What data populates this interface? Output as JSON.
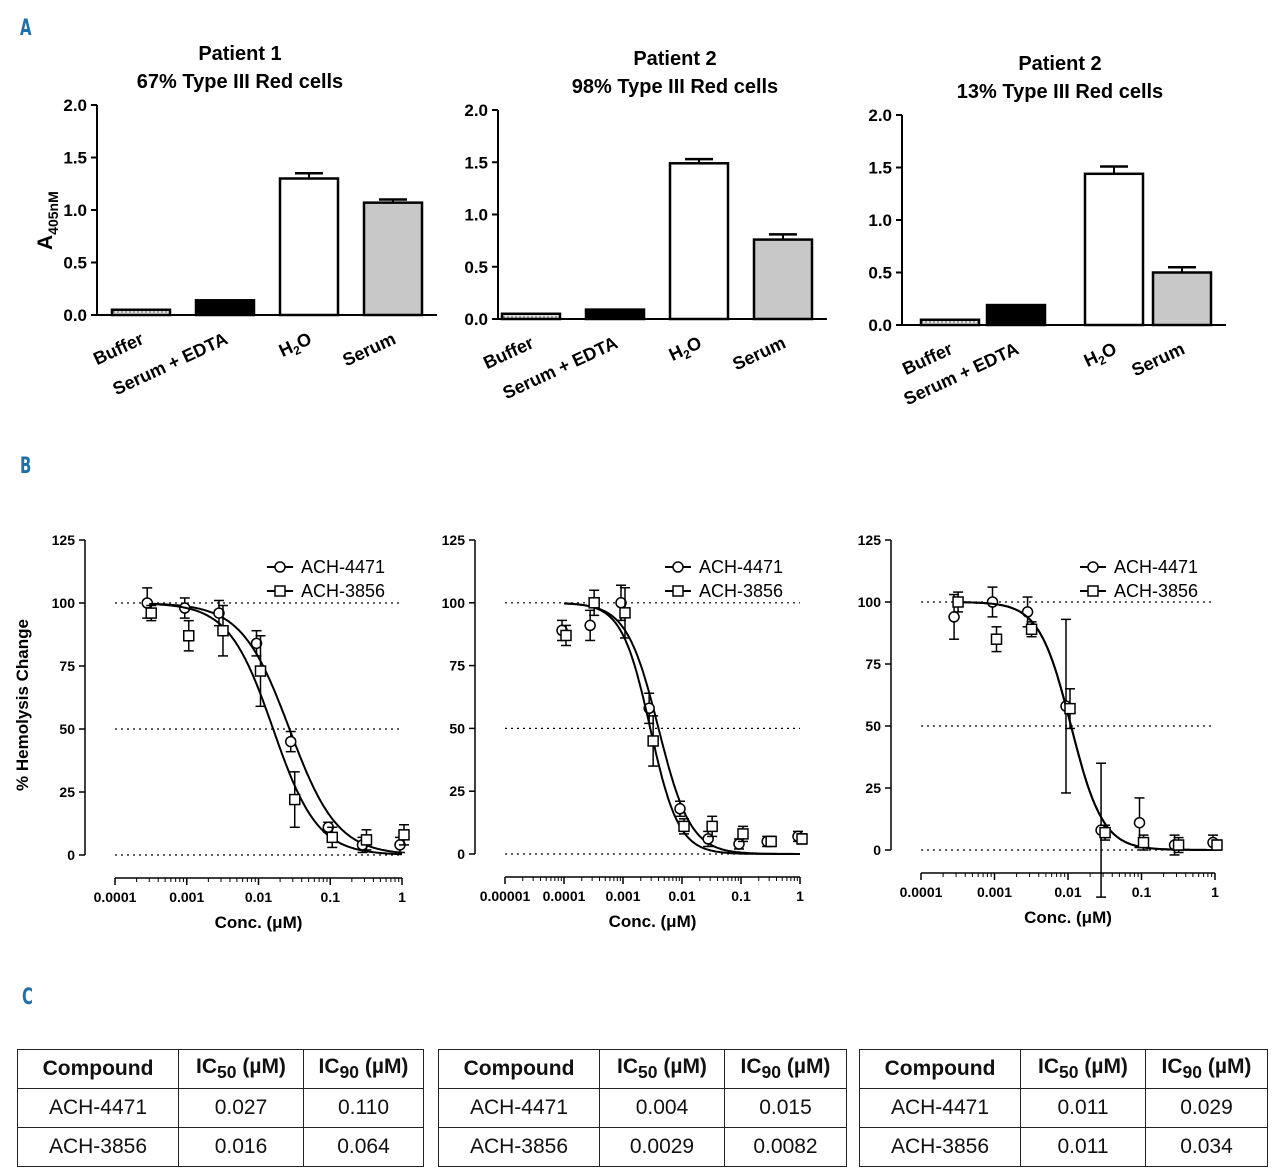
{
  "panels": {
    "a": "A",
    "b": "B",
    "c": "C"
  },
  "bar_charts": [
    {
      "title1": "Patient 1",
      "title2": "67% Type III Red cells"
    },
    {
      "title1": "Patient 2",
      "title2": "98% Type III Red cells"
    },
    {
      "title1": "Patient 2",
      "title2": "13% Type III Red cells"
    }
  ],
  "curve_charts": [
    {
      "xlabel": "Conc. (μM)"
    },
    {
      "xlabel": "Conc. (μM)"
    },
    {
      "xlabel": "Conc. (μM)"
    }
  ],
  "legend": {
    "s1": "ACH-4471",
    "s2": "ACH-3856"
  },
  "tables": [
    {
      "h1": "Compound",
      "h2": "IC",
      "h2sub": "50",
      "h2unit": " (µM)",
      "h3": "IC",
      "h3sub": "90",
      "h3unit": " (µM)",
      "rows": [
        [
          "ACH-4471",
          "0.027",
          "0.110"
        ],
        [
          "ACH-3856",
          "0.016",
          "0.064"
        ]
      ]
    },
    {
      "h1": "Compound",
      "h2": "IC",
      "h2sub": "50",
      "h2unit": " (µM)",
      "h3": "IC",
      "h3sub": "90",
      "h3unit": " (µM)",
      "rows": [
        [
          "ACH-4471",
          "0.004",
          "0.015"
        ],
        [
          "ACH-3856",
          "0.0029",
          "0.0082"
        ]
      ]
    },
    {
      "h1": "Compound",
      "h2": "IC",
      "h2sub": "50",
      "h2unit": " (µM)",
      "h3": "IC",
      "h3sub": "90",
      "h3unit": " (µM)",
      "rows": [
        [
          "ACH-4471",
          "0.011",
          "0.029"
        ],
        [
          "ACH-3856",
          "0.011",
          "0.034"
        ]
      ]
    }
  ],
  "chart_data": [
    {
      "type": "bar",
      "title": "Patient 1 67% Type III Red cells",
      "ylabel": "A405nM",
      "ylabel_main": "A",
      "ylabel_sub": "405nM",
      "categories": [
        "Buffer",
        "Serum + EDTA",
        "H2O",
        "Serum"
      ],
      "values": [
        0.05,
        0.14,
        1.3,
        1.07
      ],
      "errors": [
        0.01,
        0.01,
        0.05,
        0.03
      ],
      "fills": [
        "#d0d0d0",
        "#000000",
        "#ffffff",
        "#c8c8c8"
      ],
      "ylim": [
        0,
        2.0
      ],
      "yticks": [
        "0.0",
        "0.5",
        "1.0",
        "1.5",
        "2.0"
      ]
    },
    {
      "type": "bar",
      "title": "Patient 2 98% Type III Red cells",
      "ylabel": "",
      "categories": [
        "Buffer",
        "Serum + EDTA",
        "H2O",
        "Serum"
      ],
      "values": [
        0.05,
        0.09,
        1.49,
        0.76
      ],
      "errors": [
        0.01,
        0.01,
        0.04,
        0.05
      ],
      "fills": [
        "#d0d0d0",
        "#000000",
        "#ffffff",
        "#c8c8c8"
      ],
      "ylim": [
        0,
        2.0
      ],
      "yticks": [
        "0.0",
        "0.5",
        "1.0",
        "1.5",
        "2.0"
      ]
    },
    {
      "type": "bar",
      "title": "Patient 2 13% Type III Red cells",
      "ylabel": "",
      "categories": [
        "Buffer",
        "Serum + EDTA",
        "H2O",
        "Serum"
      ],
      "values": [
        0.05,
        0.19,
        1.44,
        0.5
      ],
      "errors": [
        0.01,
        0.01,
        0.07,
        0.05
      ],
      "fills": [
        "#d0d0d0",
        "#000000",
        "#ffffff",
        "#c8c8c8"
      ],
      "ylim": [
        0,
        2.0
      ],
      "yticks": [
        "0.0",
        "0.5",
        "1.0",
        "1.5",
        "2.0"
      ]
    },
    {
      "type": "scatter",
      "xscale": "log",
      "xlabel": "Conc. (μM)",
      "ylabel": "% Hemolysis Change",
      "xlim": [
        0.0001,
        1
      ],
      "xticks": [
        "0.0001",
        "0.001",
        "0.01",
        "0.1",
        "1"
      ],
      "ylim": [
        0,
        125
      ],
      "yticks": [
        "0",
        "25",
        "50",
        "75",
        "100",
        "125"
      ],
      "hlines": [
        0,
        50,
        100
      ],
      "series": [
        {
          "name": "ACH-4471",
          "marker": "circle",
          "ic50": 0.027,
          "hill": 1.3,
          "x": [
            0.0003,
            0.001,
            0.003,
            0.01,
            0.03,
            0.1,
            0.3,
            1
          ],
          "y": [
            100,
            98,
            96,
            84,
            45,
            11,
            4,
            4
          ],
          "err": [
            6,
            4,
            5,
            5,
            4,
            2,
            3,
            3
          ]
        },
        {
          "name": "ACH-3856",
          "marker": "square",
          "ic50": 0.016,
          "hill": 1.4,
          "x": [
            0.0003,
            0.001,
            0.003,
            0.01,
            0.03,
            0.1,
            0.3,
            1
          ],
          "y": [
            96,
            87,
            89,
            73,
            22,
            7,
            6,
            8
          ],
          "err": [
            3,
            6,
            10,
            14,
            11,
            4,
            4,
            4
          ]
        }
      ]
    },
    {
      "type": "scatter",
      "xscale": "log",
      "xlabel": "Conc. (μM)",
      "ylabel": "",
      "xlim": [
        1e-05,
        1
      ],
      "xticks": [
        "0.00001",
        "0.0001",
        "0.001",
        "0.01",
        "0.1",
        "1"
      ],
      "ylim": [
        0,
        125
      ],
      "yticks": [
        "0",
        "25",
        "50",
        "75",
        "100",
        "125"
      ],
      "hlines": [
        0,
        50,
        100
      ],
      "series": [
        {
          "name": "ACH-4471",
          "marker": "circle",
          "ic50": 0.004,
          "hill": 1.6,
          "x": [
            0.0001,
            0.0003,
            0.001,
            0.003,
            0.01,
            0.03,
            0.1,
            0.3,
            1
          ],
          "y": [
            89,
            91,
            100,
            58,
            18,
            6,
            4,
            5,
            7
          ],
          "err": [
            4,
            6,
            7,
            6,
            3,
            3,
            2,
            2,
            2
          ]
        },
        {
          "name": "ACH-3856",
          "marker": "square",
          "ic50": 0.0029,
          "hill": 1.8,
          "x": [
            0.0001,
            0.0003,
            0.001,
            0.003,
            0.01,
            0.03,
            0.1,
            0.3,
            1
          ],
          "y": [
            87,
            100,
            96,
            45,
            11,
            11,
            8,
            5,
            6
          ],
          "err": [
            4,
            5,
            10,
            10,
            3,
            4,
            3,
            2,
            2
          ]
        }
      ]
    },
    {
      "type": "scatter",
      "xscale": "log",
      "xlabel": "Conc. (μM)",
      "ylabel": "",
      "xlim": [
        0.0001,
        1
      ],
      "xticks": [
        "0.0001",
        "0.001",
        "0.01",
        "0.1",
        "1"
      ],
      "ylim": [
        0,
        125
      ],
      "yticks": [
        "0",
        "25",
        "50",
        "75",
        "100",
        "125"
      ],
      "hlines": [
        0,
        50,
        100
      ],
      "series": [
        {
          "name": "ACH-4471",
          "marker": "circle",
          "ic50": 0.011,
          "hill": 2.0,
          "x": [
            0.0003,
            0.001,
            0.003,
            0.01,
            0.03,
            0.1,
            0.3,
            1
          ],
          "y": [
            94,
            100,
            96,
            58,
            8,
            11,
            2,
            3
          ],
          "err": [
            9,
            6,
            6,
            35,
            27,
            10,
            4,
            3
          ]
        },
        {
          "name": "ACH-3856",
          "marker": "square",
          "ic50": 0.011,
          "hill": 2.0,
          "x": [
            0.0003,
            0.001,
            0.003,
            0.01,
            0.03,
            0.1,
            0.3,
            1
          ],
          "y": [
            100,
            85,
            89,
            57,
            7,
            3,
            2,
            2
          ],
          "err": [
            4,
            5,
            3,
            8,
            3,
            3,
            3,
            2
          ]
        }
      ]
    }
  ]
}
